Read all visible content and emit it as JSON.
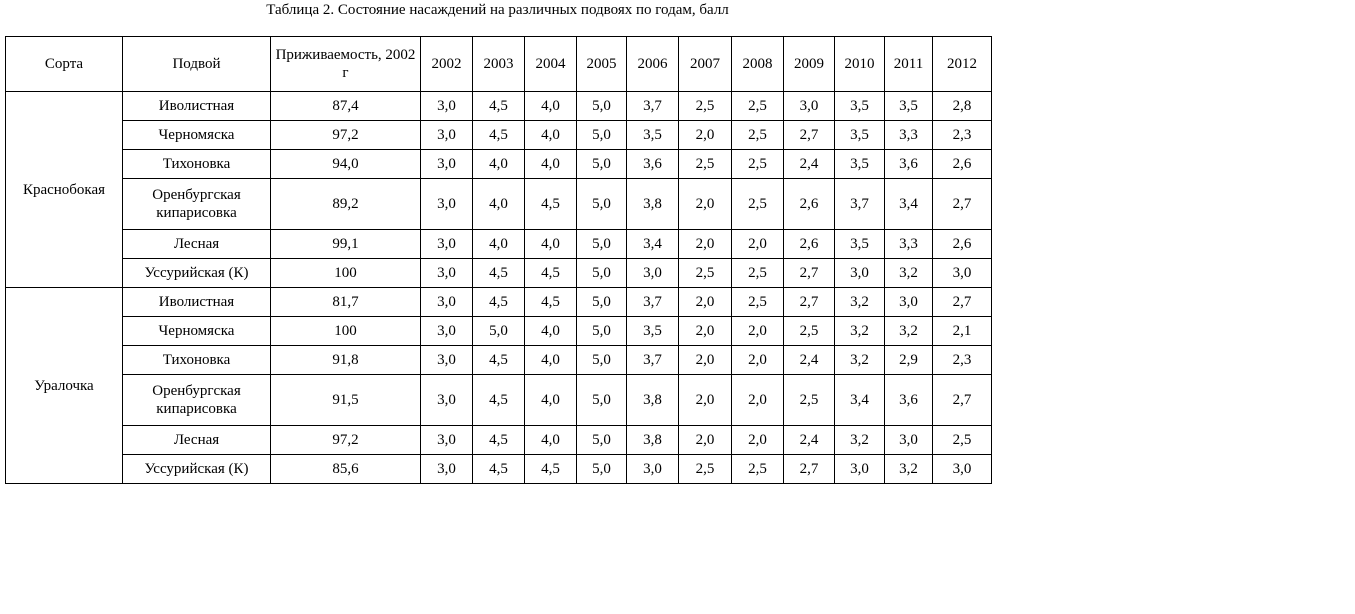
{
  "caption": "Таблица 2. Состояние насаждений на различных подвоях по годам, балл",
  "table": {
    "header": [
      "Сорта",
      "Подвой",
      "Приживаемость, 2002 г",
      "2002",
      "2003",
      "2004",
      "2005",
      "2006",
      "2007",
      "2008",
      "2009",
      "2010",
      "2011",
      "2012"
    ],
    "groups": [
      {
        "name": "Краснобокая",
        "rows": [
          [
            "Иволистная",
            "87,4",
            "3,0",
            "4,5",
            "4,0",
            "5,0",
            "3,7",
            "2,5",
            "2,5",
            "3,0",
            "3,5",
            "3,5",
            "2,8"
          ],
          [
            "Черномяска",
            "97,2",
            "3,0",
            "4,5",
            "4,0",
            "5,0",
            "3,5",
            "2,0",
            "2,5",
            "2,7",
            "3,5",
            "3,3",
            "2,3"
          ],
          [
            "Тихоновка",
            "94,0",
            "3,0",
            "4,0",
            "4,0",
            "5,0",
            "3,6",
            "2,5",
            "2,5",
            "2,4",
            "3,5",
            "3,6",
            "2,6"
          ],
          [
            "Оренбургская кипарисовка",
            "89,2",
            "3,0",
            "4,0",
            "4,5",
            "5,0",
            "3,8",
            "2,0",
            "2,5",
            "2,6",
            "3,7",
            "3,4",
            "2,7"
          ],
          [
            "Лесная",
            "99,1",
            "3,0",
            "4,0",
            "4,0",
            "5,0",
            "3,4",
            "2,0",
            "2,0",
            "2,6",
            "3,5",
            "3,3",
            "2,6"
          ],
          [
            "Уссурийская (К)",
            "100",
            "3,0",
            "4,5",
            "4,5",
            "5,0",
            "3,0",
            "2,5",
            "2,5",
            "2,7",
            "3,0",
            "3,2",
            "3,0"
          ]
        ]
      },
      {
        "name": "Уралочка",
        "rows": [
          [
            "Иволистная",
            "81,7",
            "3,0",
            "4,5",
            "4,5",
            "5,0",
            "3,7",
            "2,0",
            "2,5",
            "2,7",
            "3,2",
            "3,0",
            "2,7"
          ],
          [
            "Черномяска",
            "100",
            "3,0",
            "5,0",
            "4,0",
            "5,0",
            "3,5",
            "2,0",
            "2,0",
            "2,5",
            "3,2",
            "3,2",
            "2,1"
          ],
          [
            "Тихоновка",
            "91,8",
            "3,0",
            "4,5",
            "4,0",
            "5,0",
            "3,7",
            "2,0",
            "2,0",
            "2,4",
            "3,2",
            "2,9",
            "2,3"
          ],
          [
            "Оренбургская кипарисовка",
            "91,5",
            "3,0",
            "4,5",
            "4,0",
            "5,0",
            "3,8",
            "2,0",
            "2,0",
            "2,5",
            "3,4",
            "3,6",
            "2,7"
          ],
          [
            "Лесная",
            "97,2",
            "3,0",
            "4,5",
            "4,0",
            "5,0",
            "3,8",
            "2,0",
            "2,0",
            "2,4",
            "3,2",
            "3,0",
            "2,5"
          ],
          [
            "Уссурийская (К)",
            "85,6",
            "3,0",
            "4,5",
            "4,5",
            "5,0",
            "3,0",
            "2,5",
            "2,5",
            "2,7",
            "3,0",
            "3,2",
            "3,0"
          ]
        ]
      }
    ]
  }
}
